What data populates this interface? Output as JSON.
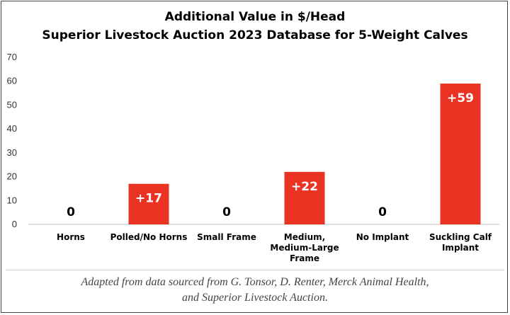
{
  "chart_data": {
    "type": "bar",
    "title": "Additional Value in $/Head",
    "subtitle": "Superior Livestock Auction 2023 Database for 5-Weight Calves",
    "categories": [
      [
        "Horns"
      ],
      [
        "Polled/No Horns"
      ],
      [
        "Small Frame"
      ],
      [
        "Medium,",
        "Medium-Large",
        "Frame"
      ],
      [
        "No Implant"
      ],
      [
        "Suckling Calf",
        "Implant"
      ]
    ],
    "values": [
      0,
      17,
      0,
      22,
      0,
      59
    ],
    "data_labels": [
      "0",
      "+17",
      "0",
      "+22",
      "0",
      "+59"
    ],
    "yticks": [
      0,
      10,
      20,
      30,
      40,
      50,
      60,
      70
    ],
    "ylim": [
      0,
      70
    ],
    "xlabel": "",
    "ylabel": "",
    "bar_color": "#ea3323",
    "grid": false
  },
  "caption": {
    "line1": "Adapted from data sourced from G. Tonsor, D. Renter, Merck Animal Health,",
    "line2": "and Superior Livestock Auction."
  }
}
